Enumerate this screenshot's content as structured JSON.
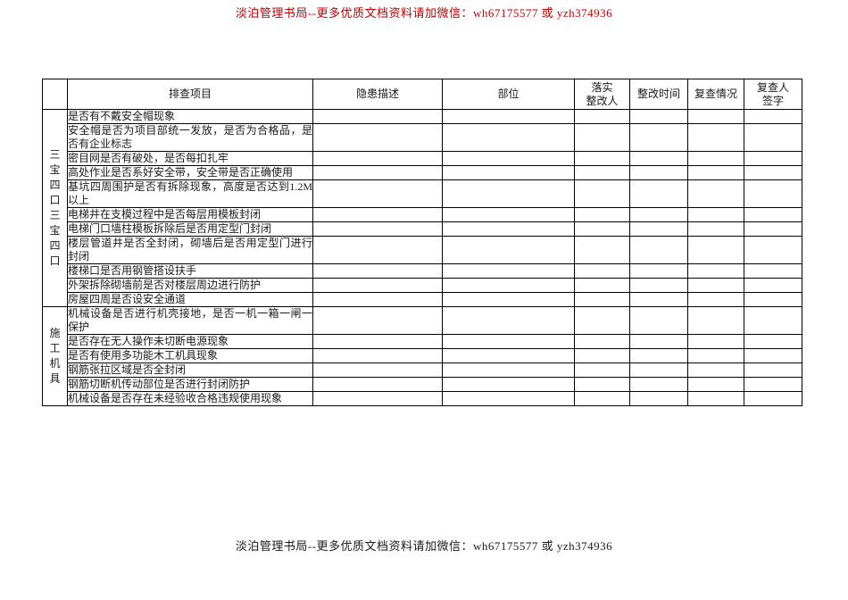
{
  "page": {
    "top_notice": "淡泊管理书局--更多优质文档资料请加微信：wh67175577 或 yzh374936",
    "bottom_notice": "淡泊管理书局--更多优质文档资料请加微信：wh67175577 或 yzh374936",
    "top_notice_color": "#c00000",
    "bottom_notice_color": "#1a1a1a"
  },
  "table": {
    "headers": {
      "category": "",
      "item": "排查项目",
      "hazard": "隐患描述",
      "location": "部位",
      "person": "落实\n整改人",
      "time": "整改时间",
      "recheck": "复查情况",
      "signature": "复查人\n签字"
    },
    "sections": [
      {
        "category": "三宝四口三宝四口",
        "items": [
          "是否有不戴安全帽现象",
          "安全帽是否为项目部统一发放，是否为合格品，是否有企业标志",
          "密目网是否有破处，是否每扣扎牢",
          "高处作业是否系好安全带，安全带是否正确使用",
          "基坑四周围护是否有拆除现象，高度是否达到1.2M 以上",
          "电梯井在支模过程中是否每层用模板封闭",
          "电梯门口墙柱模板拆除后是否用定型门封闭",
          "楼层管道井是否全封闭，砌墙后是否用定型门进行封闭",
          "楼梯口是否用钢管搭设扶手",
          "外架拆除砌墙前是否对楼层周边进行防护",
          "房屋四周是否设安全通道"
        ]
      },
      {
        "category": "施工机具",
        "items": [
          "机械设备是否进行机壳接地，是否一机一箱一闸一保护",
          "是否存在无人操作未切断电源现象",
          "是否有使用多功能木工机具现象",
          "钢筋张拉区域是否全封闭",
          "钢筋切断机传动部位是否进行封闭防护",
          "机械设备是否存在未经验收合格违规使用现象"
        ]
      }
    ],
    "empty_cell_values": {
      "hazard": "",
      "location": "",
      "person": "",
      "time": "",
      "recheck": "",
      "signature": ""
    }
  }
}
